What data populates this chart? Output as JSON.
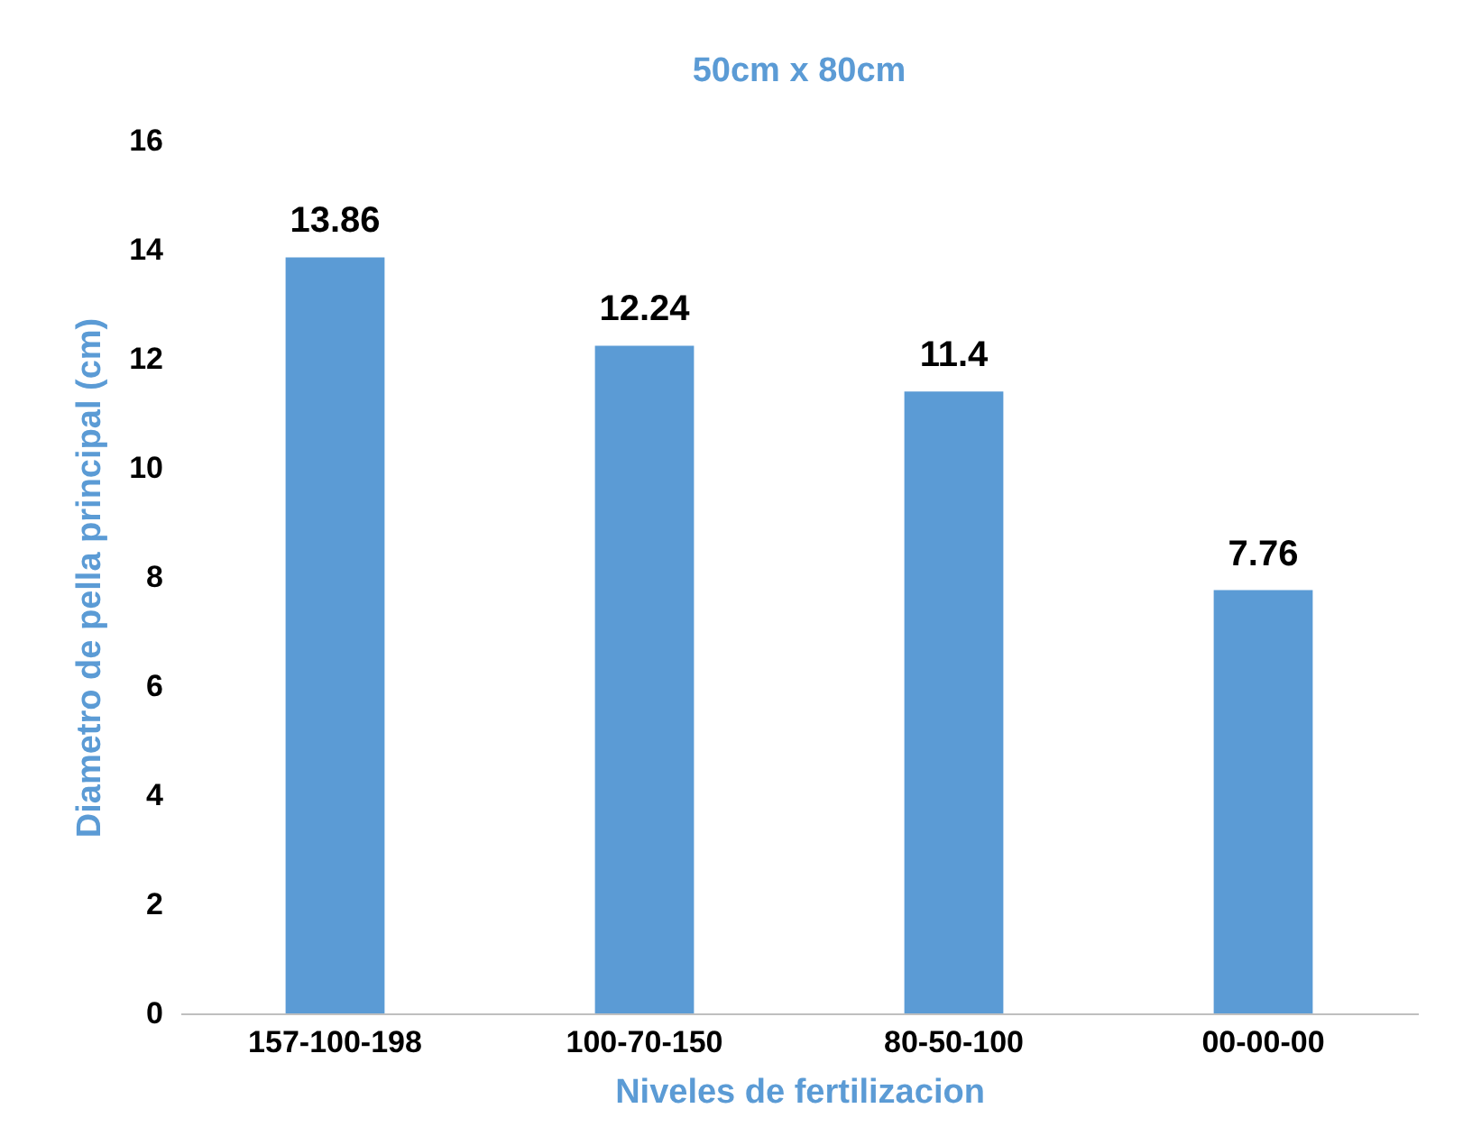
{
  "chart_data": {
    "type": "bar",
    "title": "50cm x 80cm",
    "xlabel": "Niveles de fertilizacion",
    "ylabel": "Diametro de pella principal (cm)",
    "categories": [
      "157-100-198",
      "100-70-150",
      "80-50-100",
      "00-00-00"
    ],
    "values": [
      13.86,
      12.24,
      11.4,
      7.76
    ],
    "color": "#5b9bd5",
    "ylim": [
      0,
      16
    ],
    "yticks": [
      0,
      2,
      4,
      6,
      8,
      10,
      12,
      14,
      16
    ],
    "grid": false,
    "data_labels": true
  }
}
